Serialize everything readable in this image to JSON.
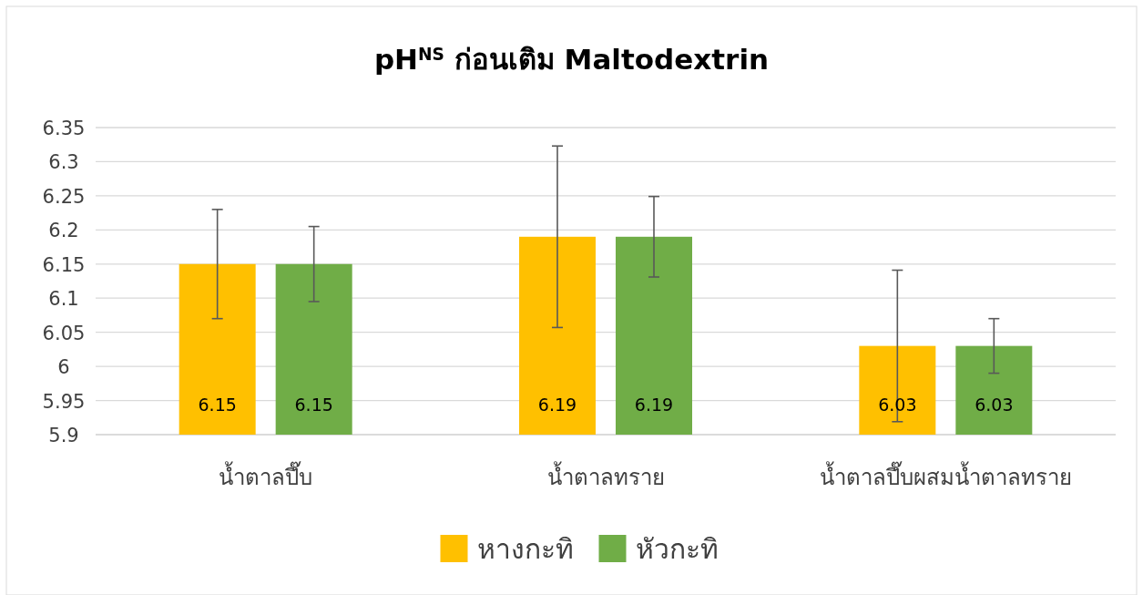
{
  "chart_data": {
    "type": "bar",
    "title": "pH$^{NS}$ ก่อนเติม Maltodextrin",
    "categories": [
      "น้ำตาลปึ๊บ",
      "น้ำตาลทราย",
      "น้ำตาลปึ๊บผสมน้ำตาลทราย"
    ],
    "series": [
      {
        "name": "หางกะทิ",
        "color": "#ffc000",
        "values": [
          6.15,
          6.19,
          6.03
        ],
        "errors": [
          0.08,
          0.133,
          0.111
        ]
      },
      {
        "name": "หัวกะทิ",
        "color": "#70ad47",
        "values": [
          6.15,
          6.19,
          6.03
        ],
        "errors": [
          0.055,
          0.059,
          0.04
        ]
      }
    ],
    "ylim": [
      5.9,
      6.35
    ],
    "yticks": [
      5.9,
      5.95,
      6,
      6.05,
      6.1,
      6.15,
      6.2,
      6.25,
      6.3,
      6.35
    ],
    "grid": "y",
    "legend": "bottom",
    "data_labels": true
  }
}
